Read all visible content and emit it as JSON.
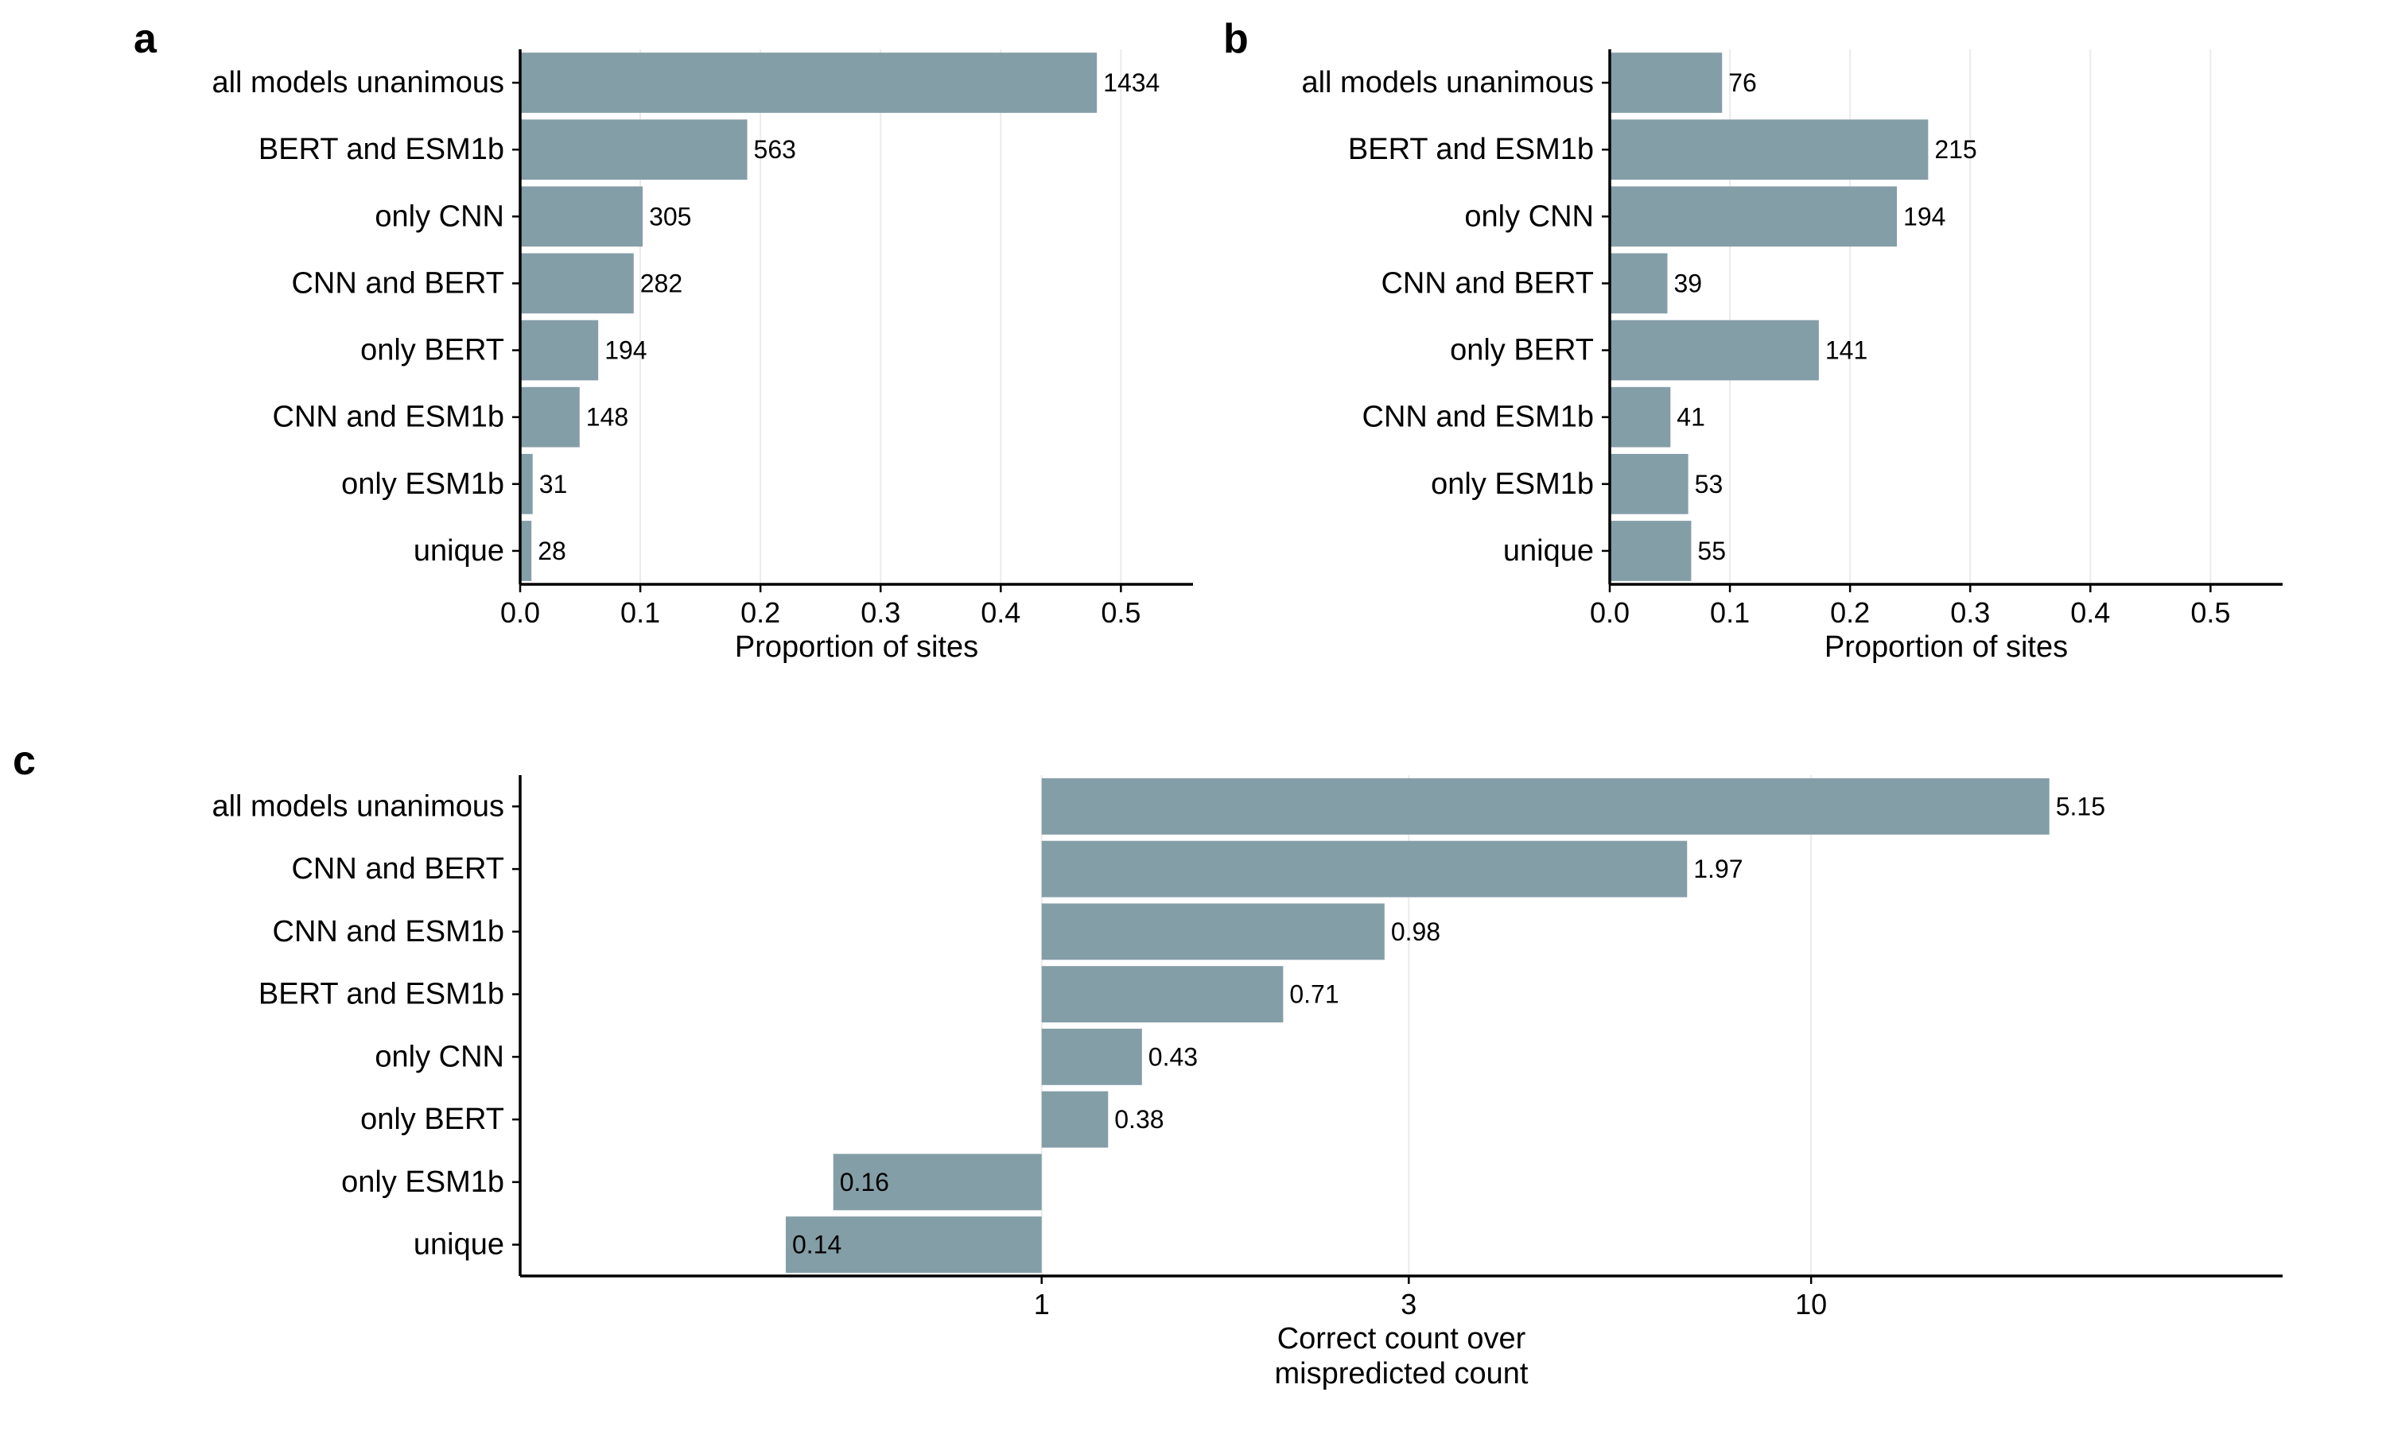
{
  "colors": {
    "bar": "#849ea7",
    "axis": "#000000",
    "grid": "#ebebeb",
    "background": "#ffffff"
  },
  "chart_data": [
    {
      "panel": "a",
      "type": "bar",
      "orientation": "horizontal",
      "categories": [
        "all models unanimous",
        "BERT and ESM1b",
        "only CNN",
        "CNN and BERT",
        "only BERT",
        "CNN and ESM1b",
        "only ESM1b",
        "unique"
      ],
      "values": [
        0.48,
        0.189,
        0.102,
        0.0945,
        0.065,
        0.0495,
        0.0104,
        0.0094
      ],
      "bar_labels": [
        "1434",
        "563",
        "305",
        "282",
        "194",
        "148",
        "31",
        "28"
      ],
      "xlabel": "Proportion of sites",
      "xlim": [
        0,
        0.56
      ],
      "xticks": [
        0,
        0.1,
        0.2,
        0.3,
        0.4,
        0.5
      ],
      "xtick_labels": [
        "0.0",
        "0.1",
        "0.2",
        "0.3",
        "0.4",
        "0.5"
      ],
      "grid": "vertical major lines"
    },
    {
      "panel": "b",
      "type": "bar",
      "orientation": "horizontal",
      "categories": [
        "all models unanimous",
        "BERT and ESM1b",
        "only CNN",
        "CNN and BERT",
        "only BERT",
        "CNN and ESM1b",
        "only ESM1b",
        "unique"
      ],
      "values": [
        0.0935,
        0.265,
        0.239,
        0.048,
        0.174,
        0.0505,
        0.0653,
        0.0678
      ],
      "bar_labels": [
        "76",
        "215",
        "194",
        "39",
        "141",
        "41",
        "53",
        "55"
      ],
      "xlabel": "Proportion of sites",
      "xlim": [
        0,
        0.56
      ],
      "xticks": [
        0,
        0.1,
        0.2,
        0.3,
        0.4,
        0.5
      ],
      "xtick_labels": [
        "0.0",
        "0.1",
        "0.2",
        "0.3",
        "0.4",
        "0.5"
      ],
      "grid": "vertical major lines"
    },
    {
      "panel": "c",
      "type": "bar",
      "orientation": "horizontal",
      "scale": "log",
      "baseline": 1,
      "categories": [
        "all models unanimous",
        "CNN and BERT",
        "CNN and ESM1b",
        "BERT and ESM1b",
        "only CNN",
        "only BERT",
        "only ESM1b",
        "unique"
      ],
      "values": [
        20.4,
        6.9,
        2.79,
        2.06,
        1.35,
        1.22,
        0.536,
        0.465
      ],
      "bar_labels": [
        "5.15",
        "1.97",
        "0.98",
        "0.71",
        "0.43",
        "0.38",
        "0.16",
        "0.14"
      ],
      "xlabel": [
        "Correct count over",
        "mispredicted count"
      ],
      "xlim": [
        0.21,
        41
      ],
      "xticks": [
        1,
        3,
        10
      ],
      "xtick_labels": [
        "1",
        "3",
        "10"
      ],
      "grid": "vertical major lines"
    }
  ]
}
